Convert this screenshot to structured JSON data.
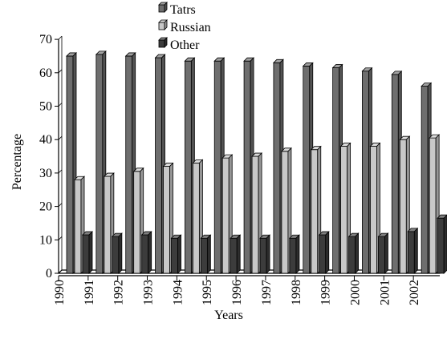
{
  "chart_data": {
    "type": "bar",
    "title": "",
    "xlabel": "Years",
    "ylabel": "Percentage",
    "ylim": [
      0,
      70
    ],
    "yticks": [
      0,
      10,
      20,
      30,
      40,
      50,
      60,
      70
    ],
    "categories": [
      "1990",
      "1991",
      "1992",
      "1993",
      "1994",
      "1995",
      "1996",
      "1997",
      "1998",
      "1999",
      "2000",
      "2001",
      "2002"
    ],
    "bar_style": "3d",
    "legend_position": "top-center",
    "series": [
      {
        "name": "Tatrs",
        "color": "#6e6e6e",
        "values": [
          65,
          65.5,
          65,
          64.5,
          63.5,
          63.5,
          63.5,
          63,
          62,
          61.5,
          60.5,
          59.5,
          56
        ]
      },
      {
        "name": "Russian",
        "color": "#c8c8c8",
        "values": [
          28,
          29,
          30.5,
          32,
          33,
          34.5,
          35,
          36.5,
          37,
          38,
          38,
          40,
          40.5
        ]
      },
      {
        "name": "Other",
        "color": "#3c3c3c",
        "values": [
          11.5,
          11,
          11.5,
          10.5,
          10.5,
          10.5,
          10.5,
          10.5,
          11.5,
          11,
          11,
          12.5,
          16.5
        ]
      }
    ]
  }
}
